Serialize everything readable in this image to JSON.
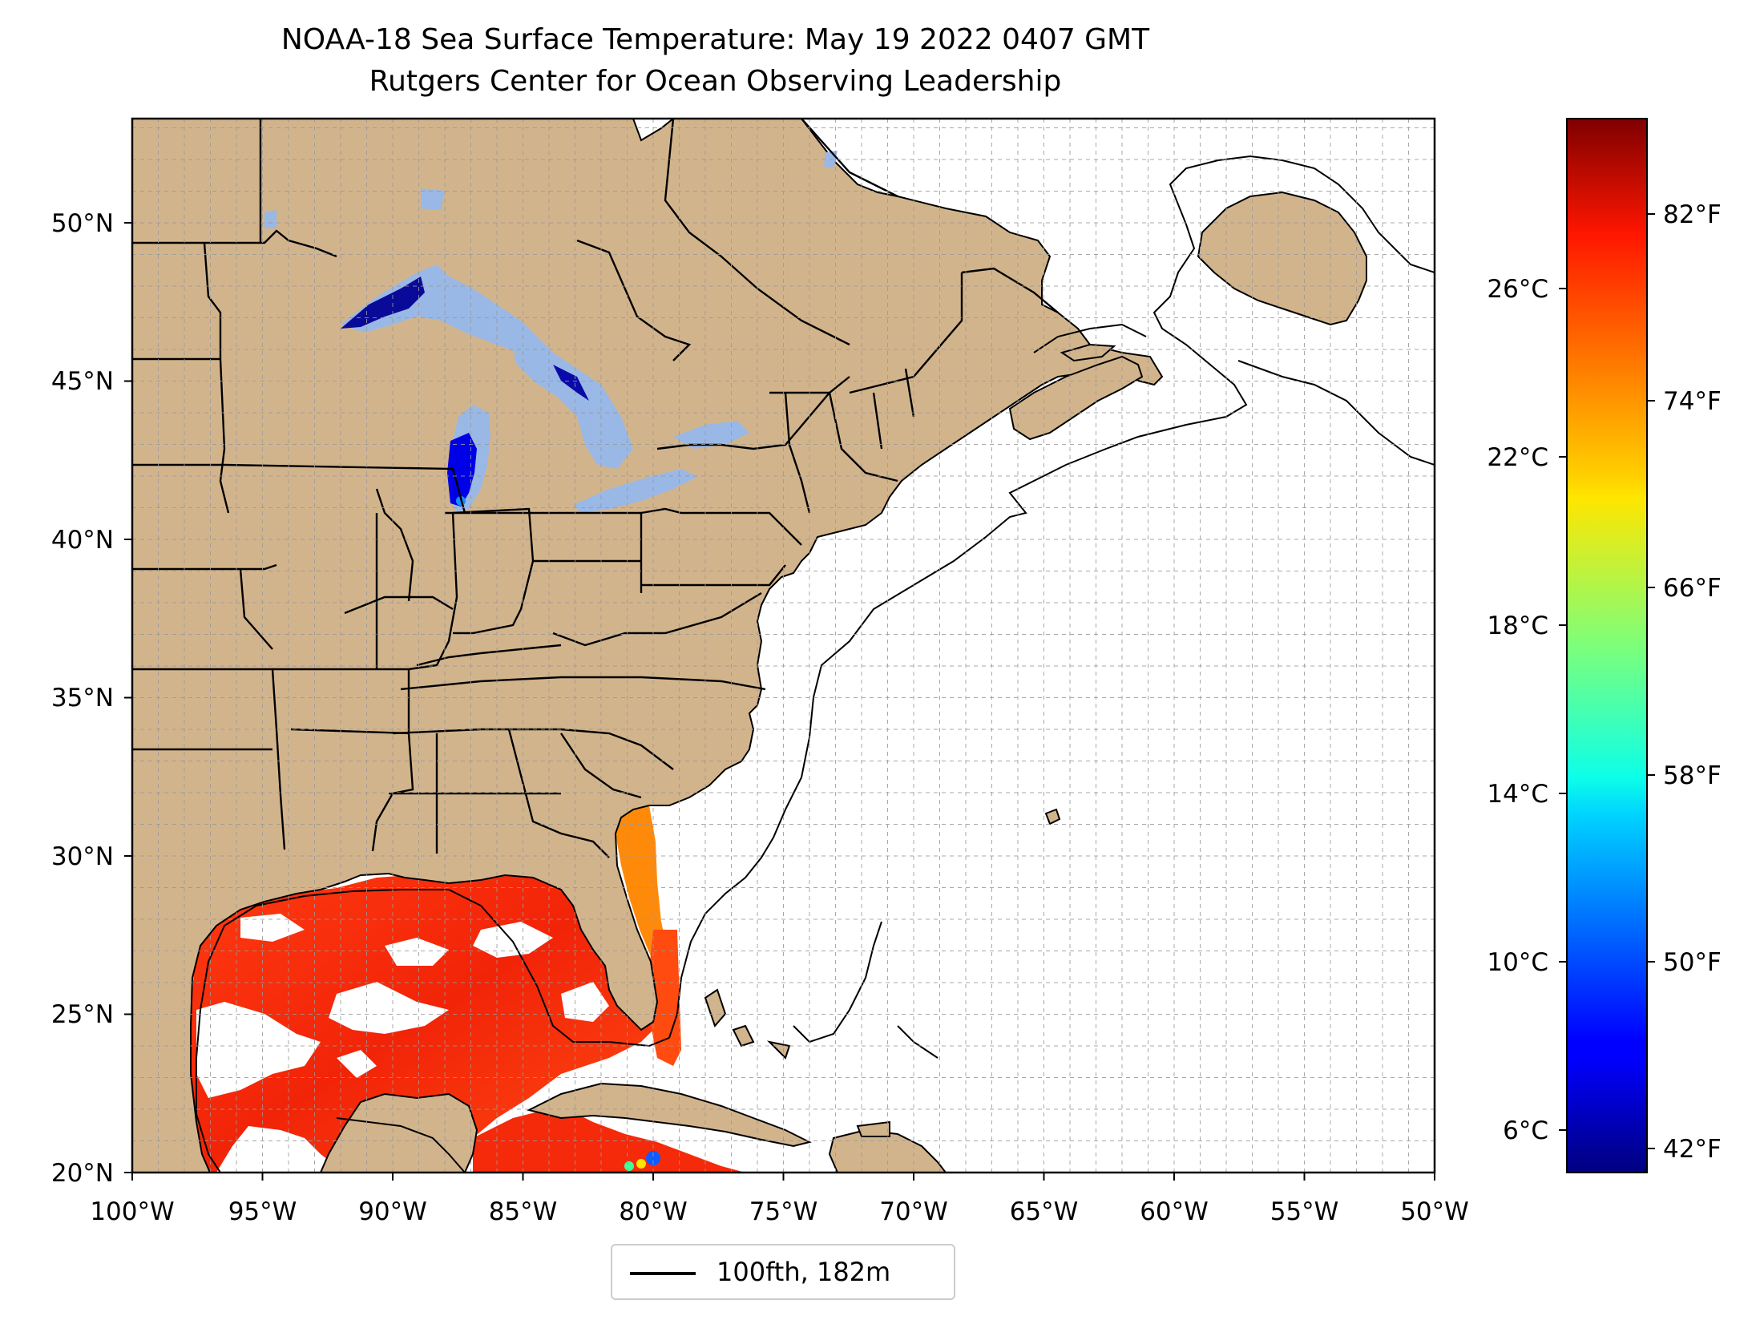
{
  "title": "NOAA-18 Sea Surface Temperature: May 19 2022 0407 GMT",
  "subtitle": "Rutgers Center for Ocean Observing Leadership",
  "map": {
    "projection": "plate-carree",
    "lon_range": [
      -100,
      -50
    ],
    "lat_range": [
      20,
      52.2
    ],
    "lon_ticks": [
      "100°W",
      "95°W",
      "90°W",
      "85°W",
      "80°W",
      "75°W",
      "70°W",
      "65°W",
      "60°W",
      "55°W",
      "50°W"
    ],
    "lat_ticks": [
      "20°N",
      "25°N",
      "30°N",
      "35°N",
      "40°N",
      "45°N",
      "50°N"
    ],
    "gridlines": true,
    "land_color": "#d2b48c",
    "ocean_color": "#ffffff",
    "lake_color": "#99b8e6"
  },
  "colorbar": {
    "colormap": "jet",
    "range_c": [
      5,
      30
    ],
    "celsius_ticks": [
      "6°C",
      "10°C",
      "14°C",
      "18°C",
      "22°C",
      "26°C"
    ],
    "fahrenheit_ticks": [
      "42°F",
      "50°F",
      "58°F",
      "66°F",
      "74°F",
      "82°F"
    ]
  },
  "legend": {
    "label": "100fth, 182m",
    "placement": "bottom-center"
  }
}
